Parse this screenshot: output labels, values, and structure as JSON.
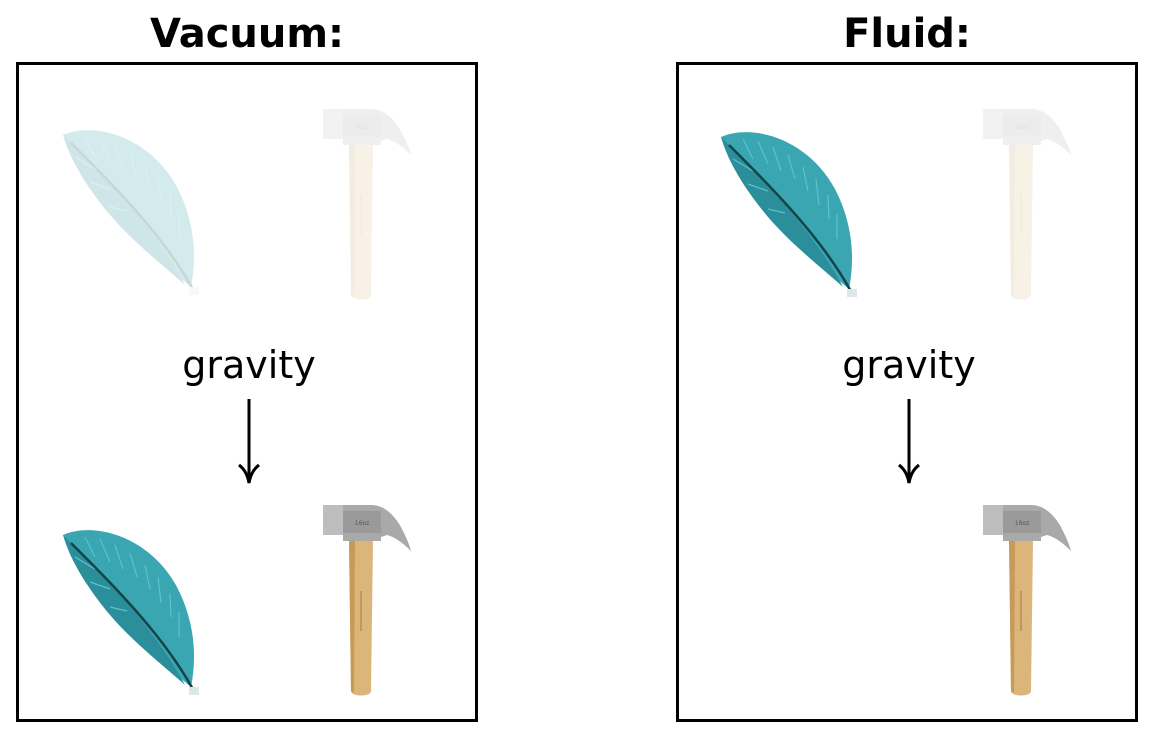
{
  "panels": [
    {
      "title": "Vacuum:",
      "label": "gravity",
      "start": {
        "feather": "faded",
        "hammer": "faded"
      },
      "end": {
        "feather": "solid",
        "hammer": "solid"
      }
    },
    {
      "title": "Fluid:",
      "label": "gravity",
      "start": {
        "feather": "solid",
        "hammer": "faded"
      },
      "end": {
        "feather": "absent",
        "hammer": "solid"
      }
    }
  ],
  "colors": {
    "feather": "#3aa6b2",
    "feather_dark": "#1f7f8c",
    "hammer_handle": "#dcb57a",
    "hammer_head": "#a9a9a9",
    "frame": "#000000"
  },
  "icons": {
    "feather": "feather-icon",
    "hammer": "hammer-icon",
    "arrow": "down-arrow-icon"
  }
}
